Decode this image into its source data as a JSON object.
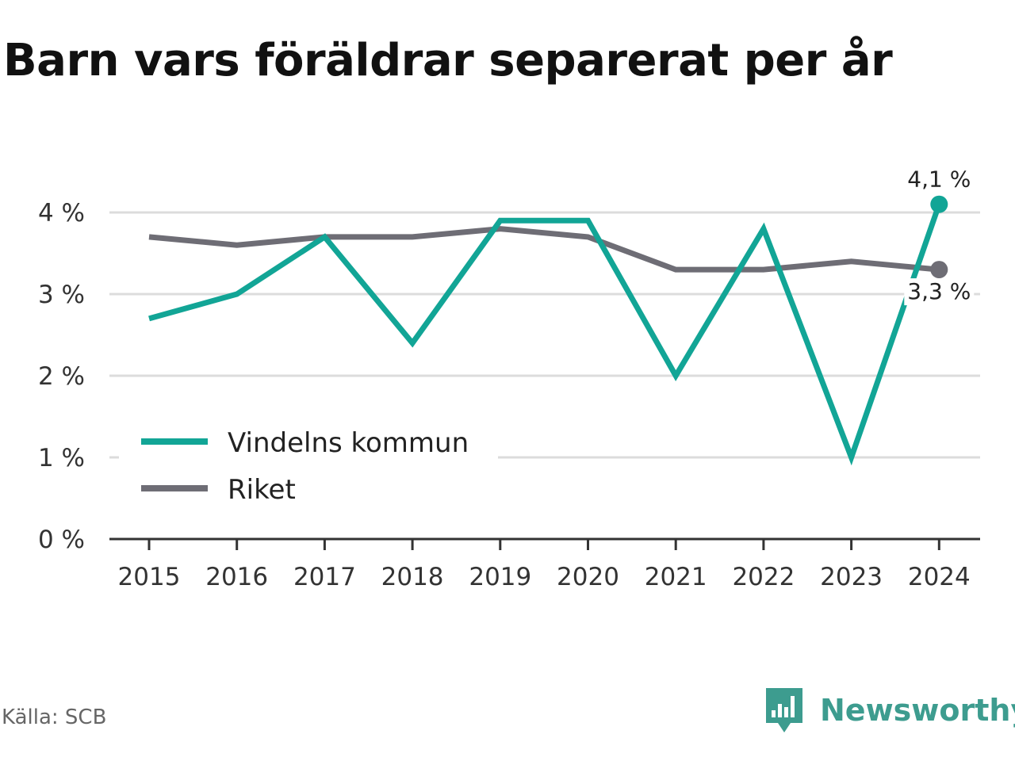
{
  "title": "Barn vars föräldrar separerat per år",
  "source": "Källa: SCB",
  "brand": {
    "name": "Newsworthy",
    "icon": "newsworthy-logo-icon"
  },
  "colors": {
    "accent": "#12a596",
    "national": "#6e6d75",
    "grid": "#dcdcdc",
    "axis": "#333333"
  },
  "chart_data": {
    "type": "line",
    "title": "Barn vars föräldrar separerat per år",
    "x": [
      "2015",
      "2016",
      "2017",
      "2018",
      "2019",
      "2020",
      "2021",
      "2022",
      "2023",
      "2024"
    ],
    "series": [
      {
        "name": "Vindelns kommun",
        "values": [
          2.7,
          3.0,
          3.7,
          2.4,
          3.9,
          3.9,
          2.0,
          3.8,
          1.0,
          4.1
        ]
      },
      {
        "name": "Riket",
        "values": [
          3.7,
          3.6,
          3.7,
          3.7,
          3.8,
          3.7,
          3.3,
          3.3,
          3.4,
          3.3
        ]
      }
    ],
    "y_ticks": [
      "0 %",
      "1 %",
      "2 %",
      "3 %",
      "4 %"
    ],
    "ylim": [
      0,
      4.1
    ],
    "end_labels": [
      "4,1 %",
      "3,3 %"
    ],
    "grid": true,
    "legend_position": "bottom-left"
  }
}
